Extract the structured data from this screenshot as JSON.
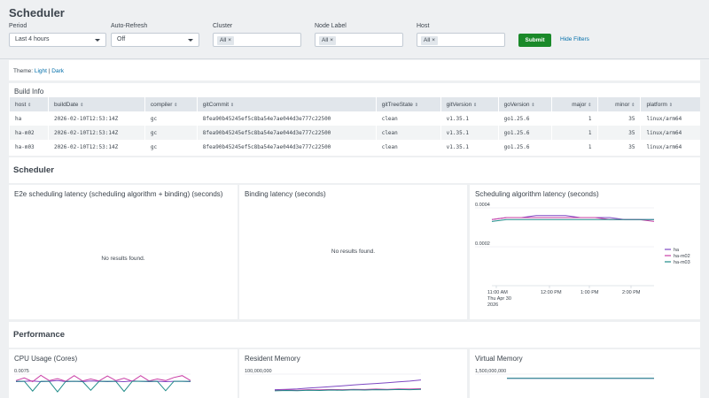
{
  "page": {
    "title": "Scheduler"
  },
  "filters": {
    "period": {
      "label": "Period",
      "value": "Last 4 hours"
    },
    "auto_refresh": {
      "label": "Auto-Refresh",
      "value": "Off"
    },
    "cluster": {
      "label": "Cluster",
      "chip": "All"
    },
    "node_label": {
      "label": "Node Label",
      "chip": "All"
    },
    "host": {
      "label": "Host",
      "chip": "All"
    },
    "chip_close": "×",
    "submit_label": "Submit",
    "hide_filters_label": "Hide Filters"
  },
  "theme": {
    "prefix": "Theme:",
    "light": "Light",
    "separator": "|",
    "dark": "Dark"
  },
  "build_info": {
    "title": "Build Info",
    "sort_glyph": "⇕",
    "columns": [
      "host",
      "buildDate",
      "compiler",
      "gitCommit",
      "gitTreeState",
      "gitVersion",
      "goVersion",
      "major",
      "minor",
      "platform"
    ],
    "rows": [
      [
        "ha",
        "2026-02-10T12:53:14Z",
        "gc",
        "8fea90b45245ef5c8ba54e7ae044d3e777c22500",
        "clean",
        "v1.35.1",
        "go1.25.6",
        "1",
        "35",
        "linux/arm64"
      ],
      [
        "ha-m02",
        "2026-02-10T12:53:14Z",
        "gc",
        "8fea90b45245ef5c8ba54e7ae044d3e777c22500",
        "clean",
        "v1.35.1",
        "go1.25.6",
        "1",
        "35",
        "linux/arm64"
      ],
      [
        "ha-m03",
        "2026-02-10T12:53:14Z",
        "gc",
        "8fea90b45245ef5c8ba54e7ae044d3e777c22500",
        "clean",
        "v1.35.1",
        "go1.25.6",
        "1",
        "35",
        "linux/arm64"
      ]
    ]
  },
  "sections": {
    "scheduler": "Scheduler",
    "performance": "Performance"
  },
  "panels": {
    "e2e": {
      "title": "E2e scheduling latency (scheduling algorithm + binding) (seconds)",
      "empty": "No results found."
    },
    "binding": {
      "title": "Binding latency (seconds)",
      "empty": "No results found."
    },
    "algorithm": {
      "title": "Scheduling algorithm latency (seconds)"
    },
    "cpu": {
      "title": "CPU Usage (Cores)"
    },
    "resident": {
      "title": "Resident Memory"
    },
    "virtual": {
      "title": "Virtual Memory"
    }
  },
  "colors": {
    "ha": "#7e48c3",
    "ha-m02": "#c93ea6",
    "ha-m03": "#1e8b88",
    "submit": "#1a8929",
    "link": "#006eaa"
  },
  "chart_data": [
    {
      "id": "algorithm",
      "type": "line",
      "ylim": [
        0,
        0.0004
      ],
      "ytick_labels": [
        "0.0004",
        "0.0002"
      ],
      "xtick_labels": [
        "11:00 AM\nThu Apr 30\n2026",
        "12:00 PM",
        "1:00 PM",
        "2:00 PM"
      ],
      "legend_position": "right",
      "series": [
        {
          "name": "ha",
          "values": [
            0.00034,
            0.00035,
            0.00035,
            0.00036,
            0.00036,
            0.00036,
            0.00035,
            0.00035,
            0.00035,
            0.00034,
            0.00034,
            0.00034
          ]
        },
        {
          "name": "ha-m02",
          "values": [
            0.00034,
            0.00035,
            0.00035,
            0.00035,
            0.00035,
            0.00035,
            0.00035,
            0.00035,
            0.00034,
            0.00034,
            0.00034,
            0.00033
          ]
        },
        {
          "name": "ha-m03",
          "values": [
            0.00033,
            0.00034,
            0.00034,
            0.00034,
            0.00034,
            0.00034,
            0.00034,
            0.00034,
            0.00034,
            0.00034,
            0.00034,
            0.00034
          ]
        }
      ]
    },
    {
      "id": "cpu",
      "type": "line",
      "ylim": [
        0,
        0.0075
      ],
      "ytick_labels": [
        "0.0075"
      ],
      "series": [
        {
          "name": "ha",
          "values": [
            0.0055,
            0.0056,
            0.0057,
            0.0055,
            0.0056,
            0.0058,
            0.0055,
            0.0056,
            0.0055,
            0.0057,
            0.0056,
            0.0055,
            0.0056,
            0.0055,
            0.0057,
            0.0056,
            0.0055,
            0.0056,
            0.0055,
            0.0056,
            0.0056,
            0.0055
          ]
        },
        {
          "name": "ha-m02",
          "values": [
            0.0058,
            0.0065,
            0.0055,
            0.0072,
            0.0058,
            0.0063,
            0.0056,
            0.0071,
            0.0057,
            0.0062,
            0.0057,
            0.007,
            0.0058,
            0.0064,
            0.0056,
            0.0071,
            0.0057,
            0.0062,
            0.0058,
            0.0066,
            0.0071,
            0.0058
          ]
        },
        {
          "name": "ha-m03",
          "values": [
            0.0056,
            0.0056,
            0.003,
            0.0056,
            0.0056,
            0.0028,
            0.0056,
            0.0056,
            0.0056,
            0.0032,
            0.0056,
            0.0056,
            0.0056,
            0.0029,
            0.0056,
            0.0056,
            0.0056,
            0.0056,
            0.0031,
            0.0056,
            0.0056,
            0.0056
          ]
        }
      ]
    },
    {
      "id": "resident",
      "type": "line",
      "ylim": [
        0,
        100000000
      ],
      "ytick_labels": [
        "100,000,000"
      ],
      "series": [
        {
          "name": "ha",
          "values": [
            60000000,
            61000000,
            62000000,
            64000000,
            66000000,
            68000000,
            70000000,
            72000000,
            74000000,
            76000000,
            78000000,
            80000000,
            82000000,
            85000000
          ]
        },
        {
          "name": "ha-m02",
          "values": [
            58000000,
            59000000,
            58500000,
            60000000,
            59500000,
            60500000,
            60000000,
            61000000,
            60500000,
            61500000,
            61000000,
            62000000,
            61500000,
            62500000
          ]
        },
        {
          "name": "ha-m03",
          "values": [
            57000000,
            58000000,
            57500000,
            58500000,
            58000000,
            59000000,
            58500000,
            59500000,
            59000000,
            60000000,
            59500000,
            60500000,
            60000000,
            61000000
          ]
        }
      ]
    },
    {
      "id": "virtual",
      "type": "line",
      "ylim": [
        0,
        1500000000
      ],
      "ytick_labels": [
        "1,500,000,000"
      ],
      "series": [
        {
          "name": "ha",
          "values": [
            1300000000,
            1300000000,
            1300000000,
            1300000000,
            1300000000
          ]
        },
        {
          "name": "ha-m03",
          "values": [
            1300000000,
            1300000000,
            1300000000,
            1300000000,
            1300000000
          ]
        }
      ]
    }
  ]
}
